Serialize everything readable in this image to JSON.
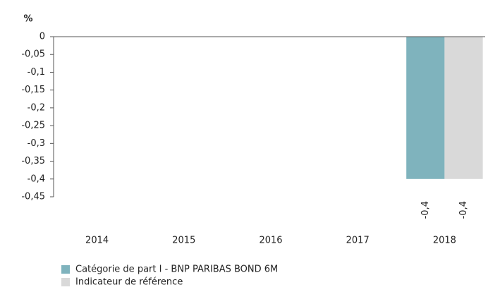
{
  "chart_data": {
    "type": "bar",
    "y_label": "%",
    "categories": [
      "2014",
      "2015",
      "2016",
      "2017",
      "2018"
    ],
    "series": [
      {
        "name": "Catégorie de part I - BNP PARIBAS BOND 6M",
        "color": "#7fb3bd",
        "values": [
          null,
          null,
          null,
          null,
          -0.4
        ],
        "value_labels": [
          null,
          null,
          null,
          null,
          "-0,4"
        ]
      },
      {
        "name": "Indicateur de référence",
        "color": "#d9d9d9",
        "values": [
          null,
          null,
          null,
          null,
          -0.4
        ],
        "value_labels": [
          null,
          null,
          null,
          null,
          "-0,4"
        ]
      }
    ],
    "ylim": [
      -0.45,
      0
    ],
    "yticks": [
      0,
      {
        "value": -0.05,
        "label": "-0,05"
      },
      {
        "value": -0.1,
        "label": "-0,1"
      },
      {
        "value": -0.15,
        "label": "-0,15"
      },
      {
        "value": -0.2,
        "label": "-0,2"
      },
      {
        "value": -0.25,
        "label": "-0,25"
      },
      {
        "value": -0.3,
        "label": "-0,3"
      },
      {
        "value": -0.35,
        "label": "-0,35"
      },
      {
        "value": -0.4,
        "label": "-0,4"
      },
      {
        "value": -0.45,
        "label": "-0,45"
      }
    ],
    "legend": "bottom-left"
  }
}
